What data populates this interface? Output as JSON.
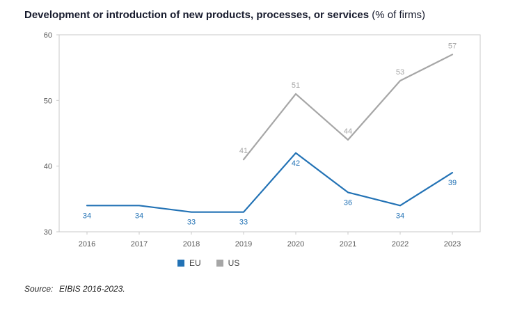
{
  "title": {
    "main": "Development or introduction of new products, processes, or services",
    "suffix": " (% of firms)"
  },
  "chart_data": {
    "type": "line",
    "x": [
      "2016",
      "2017",
      "2018",
      "2019",
      "2020",
      "2021",
      "2022",
      "2023"
    ],
    "series": [
      {
        "name": "EU",
        "color": "#2272b5",
        "values": [
          34,
          34,
          33,
          33,
          42,
          36,
          34,
          39
        ],
        "label_position": "below"
      },
      {
        "name": "US",
        "color": "#a6a6a6",
        "values": [
          null,
          null,
          null,
          41,
          51,
          44,
          53,
          57
        ],
        "label_position": "above"
      }
    ],
    "ylim": [
      30,
      60
    ],
    "yticks": [
      30,
      40,
      50,
      60
    ],
    "grid": false,
    "legend_position": "bottom",
    "frame_color": "#c9c9c9"
  },
  "source": {
    "label": "Source:",
    "text": "EIBIS 2016-2023."
  }
}
